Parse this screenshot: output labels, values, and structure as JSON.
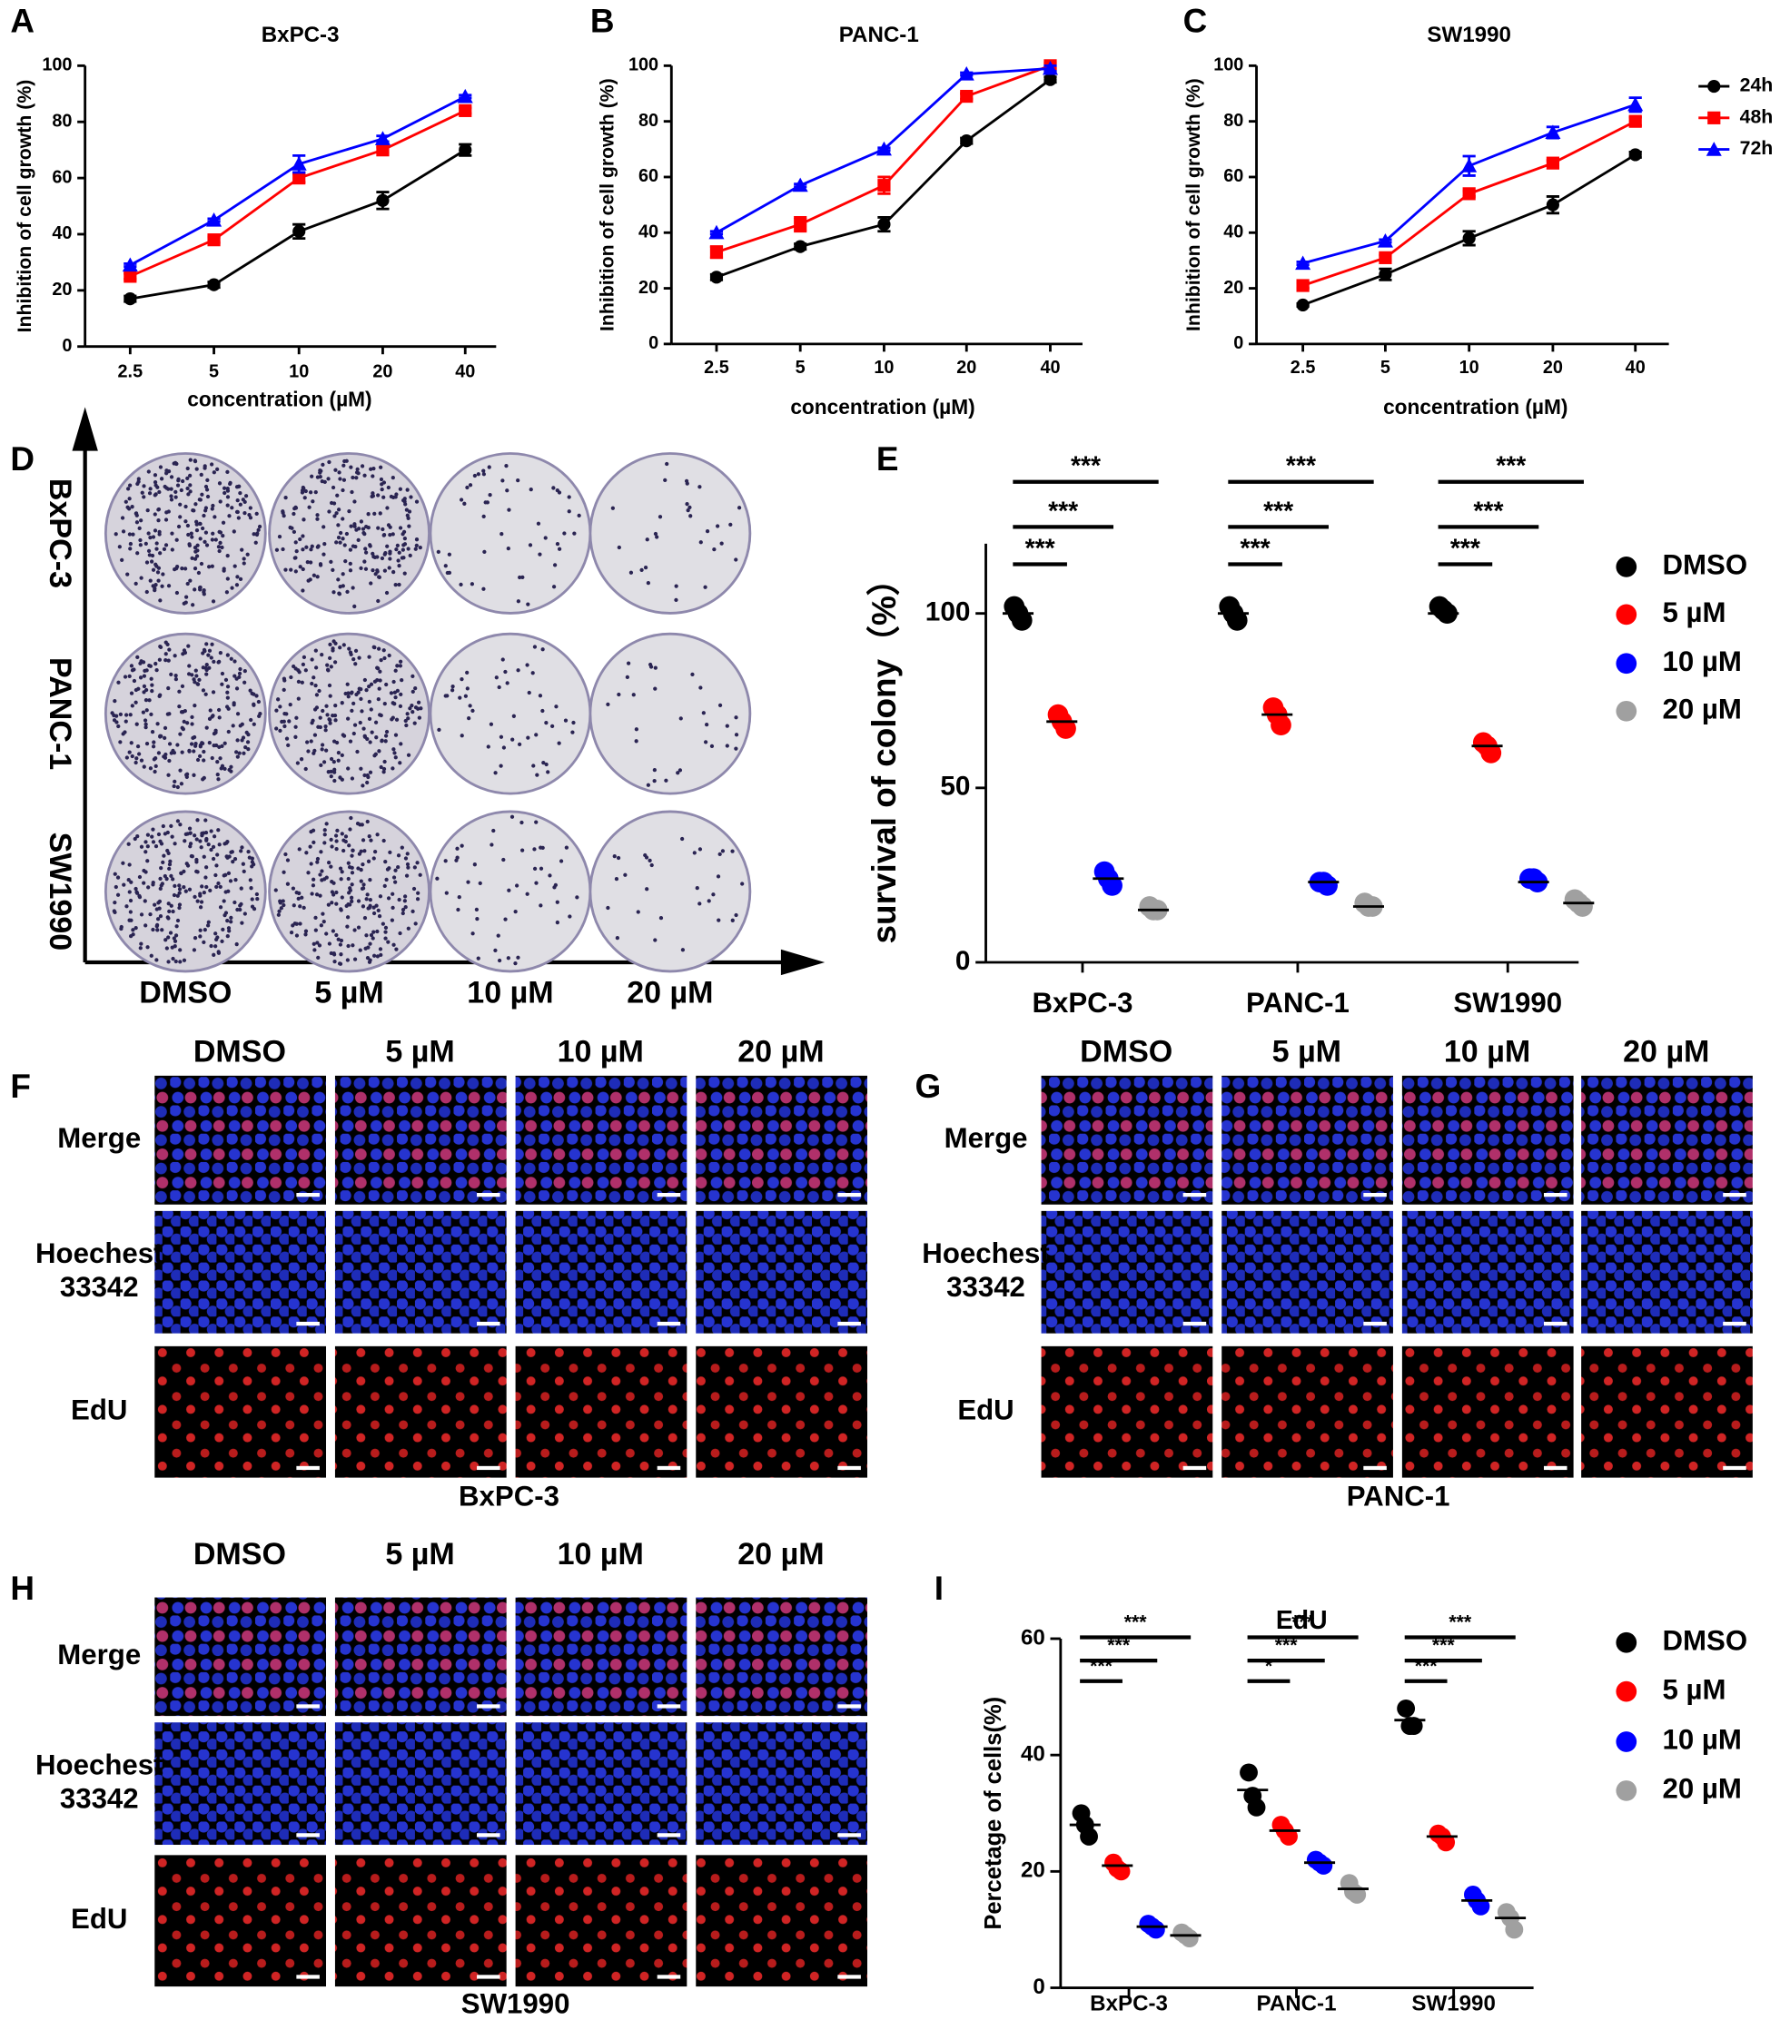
{
  "panel_labels": [
    "A",
    "B",
    "C",
    "D",
    "E",
    "F",
    "G",
    "H",
    "I"
  ],
  "chart_data": [
    {
      "type": "line",
      "title": "BxPC-3",
      "x_label": "concentration (µM)",
      "y_label": "Inhibition of cell growth (%)",
      "categories": [
        "2.5",
        "5",
        "10",
        "20",
        "40"
      ],
      "ylim": [
        0,
        100
      ],
      "yticks": [
        0,
        20,
        40,
        60,
        80,
        100
      ],
      "series": [
        {
          "color": "#000000",
          "marker": "circle",
          "values": [
            17,
            22,
            41,
            52,
            70
          ],
          "errors": [
            1,
            1,
            2.5,
            3,
            2
          ]
        },
        {
          "color": "#ff0000",
          "marker": "square",
          "values": [
            25,
            38,
            60,
            70,
            84
          ],
          "errors": [
            1,
            1,
            1.5,
            1,
            1
          ]
        },
        {
          "color": "#0000ff",
          "marker": "triangle",
          "values": [
            29,
            45,
            65,
            74,
            89
          ],
          "errors": [
            0.5,
            0.5,
            3,
            1,
            0.5
          ]
        }
      ]
    },
    {
      "type": "line",
      "title": "PANC-1",
      "x_label": "concentration (µM)",
      "y_label": "Inhibition of cell growth (%)",
      "categories": [
        "2.5",
        "5",
        "10",
        "20",
        "40"
      ],
      "ylim": [
        0,
        100
      ],
      "yticks": [
        0,
        20,
        40,
        60,
        80,
        100
      ],
      "series": [
        {
          "color": "#000000",
          "marker": "circle",
          "values": [
            24,
            35,
            43,
            73,
            95
          ],
          "errors": [
            1,
            1,
            2.5,
            1,
            1
          ]
        },
        {
          "color": "#ff0000",
          "marker": "square",
          "values": [
            33,
            43,
            57,
            89,
            100
          ],
          "errors": [
            2,
            2.5,
            3,
            1,
            1
          ]
        },
        {
          "color": "#0000ff",
          "marker": "triangle",
          "values": [
            40,
            57,
            70,
            97,
            99
          ],
          "errors": [
            0.5,
            0.5,
            0.5,
            0.5,
            1
          ]
        }
      ]
    },
    {
      "type": "line",
      "title": "SW1990",
      "x_label": "concentration (µM)",
      "y_label": "Inhibition of cell growth (%)",
      "categories": [
        "2.5",
        "5",
        "10",
        "20",
        "40"
      ],
      "ylim": [
        0,
        100
      ],
      "yticks": [
        0,
        20,
        40,
        60,
        80,
        100
      ],
      "series": [
        {
          "name": "24h",
          "color": "#000000",
          "marker": "circle",
          "values": [
            14,
            25,
            38,
            50,
            68
          ],
          "errors": [
            0.5,
            2,
            2.5,
            3,
            1
          ]
        },
        {
          "name": "48h",
          "color": "#ff0000",
          "marker": "square",
          "values": [
            21,
            31,
            54,
            65,
            80
          ],
          "errors": [
            1,
            1,
            1,
            1,
            1.5
          ]
        },
        {
          "name": "72h",
          "color": "#0000ff",
          "marker": "triangle",
          "values": [
            29,
            37,
            64,
            76,
            86
          ],
          "errors": [
            0.5,
            0.5,
            3.5,
            2,
            2.5
          ]
        }
      ]
    },
    {
      "type": "dot",
      "y_label": "survival of colony（%）",
      "categories": [
        "BxPC-3",
        "PANC-1",
        "SW1990"
      ],
      "ylim": [
        0,
        120
      ],
      "yticks": [
        0,
        50,
        100
      ],
      "series": [
        {
          "name": "DMSO",
          "color": "#000000",
          "values": [
            100,
            100,
            100
          ],
          "replicates": [
            [
              102,
              100,
              98
            ],
            [
              102,
              100,
              98
            ],
            [
              102,
              101,
              100
            ]
          ]
        },
        {
          "name": "5 µM",
          "color": "#ff0000",
          "values": [
            69,
            71,
            62
          ],
          "replicates": [
            [
              71,
              69,
              67
            ],
            [
              73,
              71,
              68
            ],
            [
              63,
              62,
              60
            ]
          ]
        },
        {
          "name": "10 µM",
          "color": "#0000ff",
          "values": [
            24,
            23,
            23
          ],
          "replicates": [
            [
              26,
              24,
              22
            ],
            [
              23,
              23,
              22
            ],
            [
              24,
              24,
              23
            ]
          ]
        },
        {
          "name": "20 µM",
          "color": "#a0a0a0",
          "values": [
            15,
            16,
            17
          ],
          "replicates": [
            [
              16,
              15,
              15
            ],
            [
              17,
              16,
              16
            ],
            [
              18,
              17,
              16
            ]
          ]
        }
      ],
      "significance": [
        [
          "***",
          "***",
          "***"
        ],
        [
          "***",
          "***",
          "***"
        ],
        [
          "***",
          "***",
          "***"
        ]
      ]
    },
    {
      "type": "dot",
      "title": "EdU",
      "y_label": "Percetage of cells(%)",
      "categories": [
        "BxPC-3",
        "PANC-1",
        "SW1990"
      ],
      "ylim": [
        0,
        60
      ],
      "yticks": [
        0,
        20,
        40,
        60
      ],
      "series": [
        {
          "name": "DMSO",
          "color": "#000000",
          "values": [
            28,
            34,
            46
          ],
          "replicates": [
            [
              30,
              28,
              26
            ],
            [
              37,
              33,
              31
            ],
            [
              48,
              45,
              45
            ]
          ]
        },
        {
          "name": "5 µM",
          "color": "#ff0000",
          "values": [
            21,
            27,
            26
          ],
          "replicates": [
            [
              21.5,
              20.5,
              20
            ],
            [
              28,
              27,
              26
            ],
            [
              26.5,
              26,
              25
            ]
          ]
        },
        {
          "name": "10 µM",
          "color": "#0000ff",
          "values": [
            10.5,
            21.5,
            15
          ],
          "replicates": [
            [
              11,
              10.5,
              10
            ],
            [
              22,
              21.5,
              21
            ],
            [
              16,
              15,
              14
            ]
          ]
        },
        {
          "name": "20 µM",
          "color": "#a0a0a0",
          "values": [
            9,
            17,
            12
          ],
          "replicates": [
            [
              9.5,
              9,
              8.5
            ],
            [
              18,
              16.5,
              16
            ],
            [
              13,
              12,
              10
            ]
          ]
        }
      ],
      "significance": [
        [
          "***",
          "***",
          "***"
        ],
        [
          "*",
          "***",
          "***"
        ],
        [
          "***",
          "***",
          "***"
        ]
      ]
    }
  ],
  "colony_assay": {
    "rows": [
      "BxPC-3",
      "PANC-1",
      "SW1990"
    ],
    "columns": [
      "DMSO",
      "5 µM",
      "10 µM",
      "20 µM"
    ]
  },
  "edu_panels": [
    {
      "columns": [
        "DMSO",
        "5 µM",
        "10 µM",
        "20 µM"
      ],
      "rows": [
        [
          "Merge"
        ],
        [
          "Hoechest",
          "33342"
        ],
        [
          "EdU"
        ]
      ],
      "cell_line": "BxPC-3"
    },
    {
      "columns": [
        "DMSO",
        "5 µM",
        "10 µM",
        "20 µM"
      ],
      "rows": [
        [
          "Merge"
        ],
        [
          "Hoechest",
          "33342"
        ],
        [
          "EdU"
        ]
      ],
      "cell_line": "PANC-1"
    },
    {
      "columns": [
        "DMSO",
        "5 µM",
        "10 µM",
        "20 µM"
      ],
      "rows": [
        [
          "Merge"
        ],
        [
          "Hoechest",
          "33342"
        ],
        [
          "EdU"
        ]
      ],
      "cell_line": "SW1990"
    }
  ]
}
